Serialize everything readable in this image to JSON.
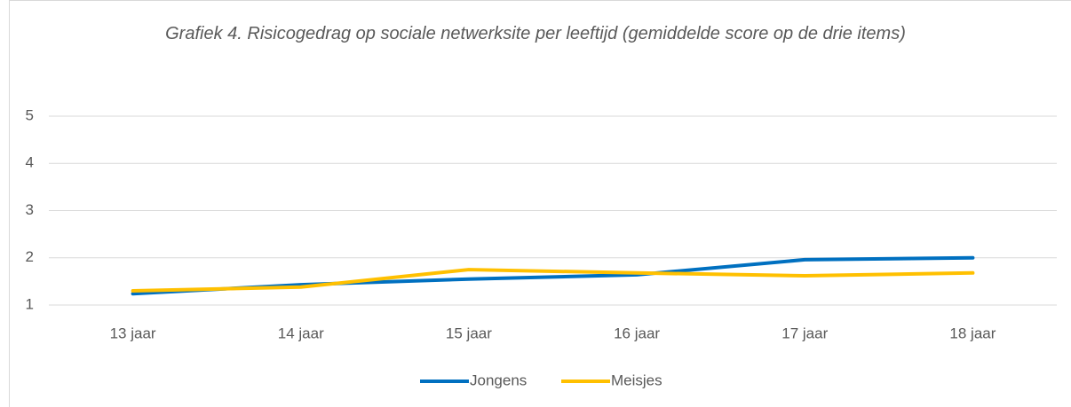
{
  "chart_data": {
    "type": "line",
    "title": "Grafiek 4. Risicogedrag op sociale netwerksite per leeftijd (gemiddelde score op de drie items)",
    "categories": [
      "13 jaar",
      "14 jaar",
      "15 jaar",
      "16 jaar",
      "17 jaar",
      "18 jaar"
    ],
    "series": [
      {
        "name": "Jongens",
        "color": "#0070c0",
        "values": [
          1.24,
          1.43,
          1.55,
          1.64,
          1.96,
          2.0
        ]
      },
      {
        "name": "Meisjes",
        "color": "#ffc000",
        "values": [
          1.3,
          1.38,
          1.75,
          1.68,
          1.62,
          1.68
        ]
      }
    ],
    "ylim": [
      1,
      5
    ],
    "yticks": [
      1,
      2,
      3,
      4,
      5
    ],
    "grid": true,
    "legend": "bottom"
  }
}
